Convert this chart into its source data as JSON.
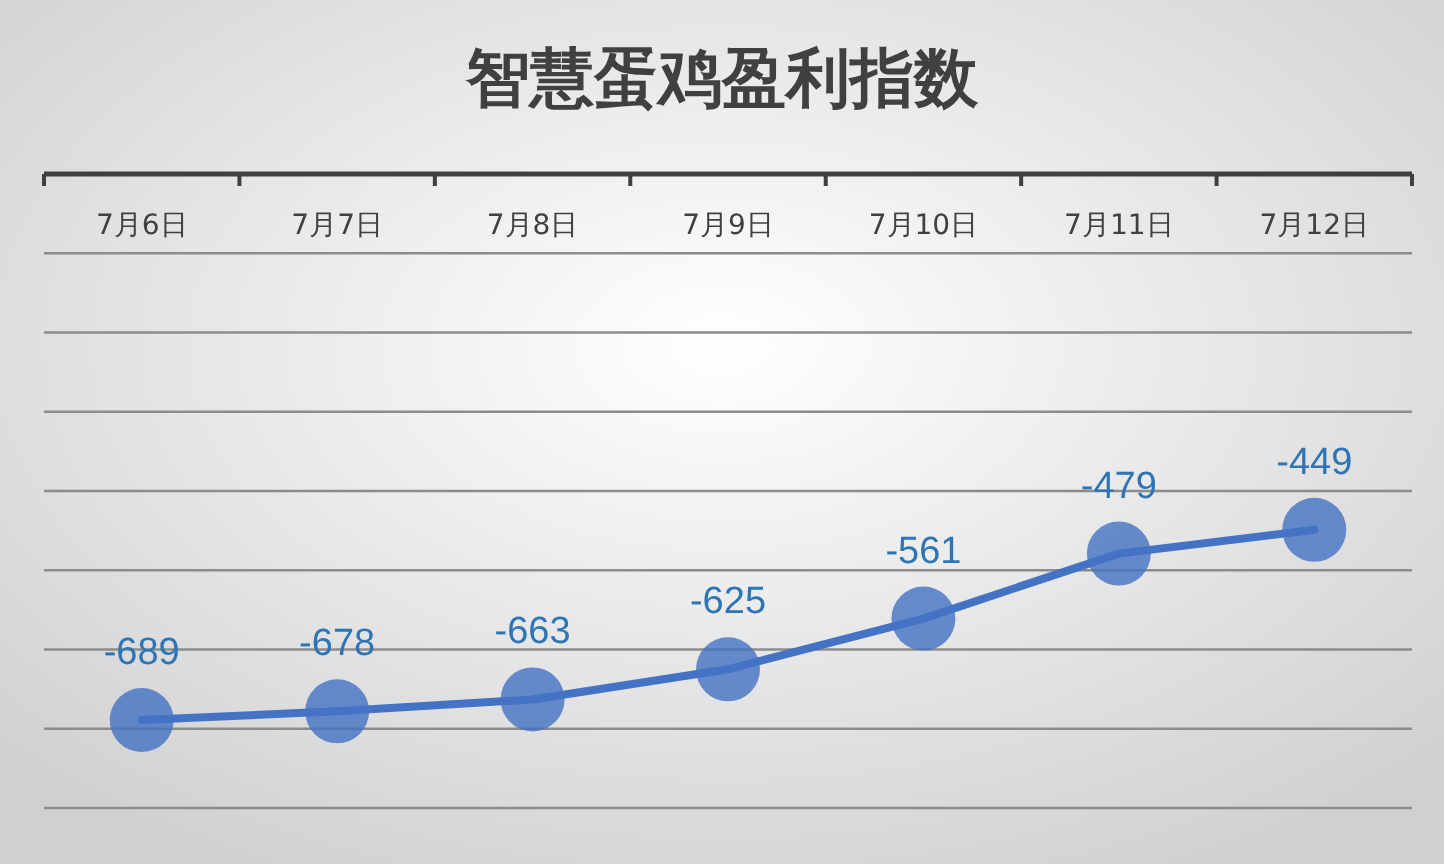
{
  "chart_data": {
    "type": "line",
    "title": "智慧蛋鸡盈利指数",
    "categories": [
      "7月6日",
      "7月7日",
      "7月8日",
      "7月9日",
      "7月10日",
      "7月11日",
      "7月12日"
    ],
    "series": [
      {
        "color": "#4472c4",
        "values": [
          -689,
          -678,
          -663,
          -625,
          -561,
          -479,
          -449
        ]
      }
    ],
    "ylim": [
      -800,
      0
    ],
    "yticks": [
      {
        "value": -800,
        "label": null
      },
      {
        "value": -700,
        "label": null
      },
      {
        "value": -600,
        "label": null
      },
      {
        "value": -500,
        "label": null
      },
      {
        "value": -400,
        "label": null
      },
      {
        "value": -300,
        "label": null
      },
      {
        "value": -200,
        "label": null
      },
      {
        "value": -100,
        "label": null
      },
      {
        "value": 0,
        "label": null
      }
    ],
    "tick_labels": "x",
    "grid": "y",
    "marker": "circle",
    "line_style": "solid",
    "data_labels": true
  }
}
